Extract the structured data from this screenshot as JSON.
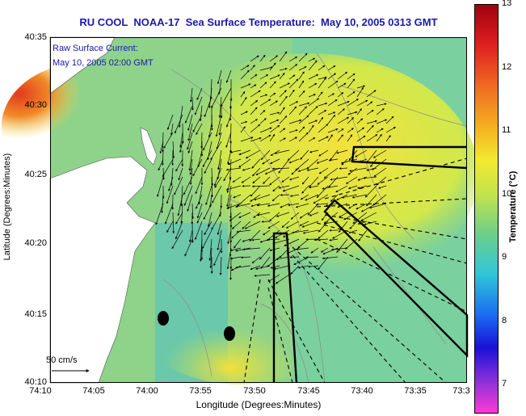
{
  "title": "RU COOL  NOAA-17  Sea Surface Temperature:  May 10, 2005 0313 GMT",
  "legend_text": {
    "line1": "Raw Surface Current:",
    "line2": "May 10, 2005 02:00 GMT",
    "scale_label": "50 cm/s"
  },
  "axes": {
    "xlabel": "Longitude (Degrees:Minutes)",
    "ylabel": "Latitude (Degrees:Minutes)",
    "x_ticks": [
      "74:10",
      "74:05",
      "74:00",
      "73:55",
      "73:50",
      "73:45",
      "73:40",
      "73:35",
      "73:3"
    ],
    "y_ticks": [
      "40:35",
      "40:30",
      "40:25",
      "40:20",
      "40:15",
      "40:10"
    ]
  },
  "colorbar": {
    "label": "Temperature (°C)",
    "ticks": [
      "13",
      "12",
      "11",
      "10",
      "9",
      "8",
      "7"
    ],
    "min": 6.3,
    "max": 13
  },
  "colors": {
    "title": "#1a1aa8",
    "land": "#ffffff",
    "warm_water": "#e8401c",
    "mid_water": "#e8e84a",
    "cool_water": "#52c8a8"
  }
}
